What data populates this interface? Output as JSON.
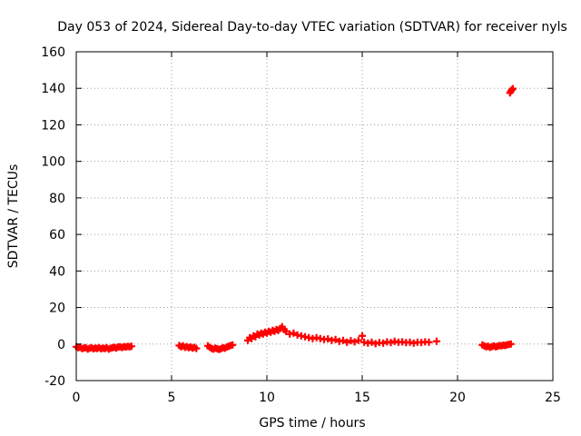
{
  "chart_data": {
    "type": "scatter",
    "title": "Day 053 of 2024, Sidereal Day-to-day VTEC variation (SDTVAR) for receiver nyls",
    "xlabel": "GPS time / hours",
    "ylabel": "SDTVAR / TECUs",
    "xlim": [
      0,
      25
    ],
    "ylim": [
      -20,
      160
    ],
    "xticks": [
      0,
      5,
      10,
      15,
      20,
      25
    ],
    "yticks": [
      -20,
      0,
      20,
      40,
      60,
      80,
      100,
      120,
      140,
      160
    ],
    "grid": true,
    "marker": "plus",
    "color": "#ff0000",
    "series": [
      {
        "points": [
          [
            0.0,
            -1.5
          ],
          [
            0.1,
            -2.0
          ],
          [
            0.2,
            -1.8
          ],
          [
            0.3,
            -2.5
          ],
          [
            0.4,
            -2.2
          ],
          [
            0.5,
            -2.0
          ],
          [
            0.6,
            -2.8
          ],
          [
            0.7,
            -2.3
          ],
          [
            0.8,
            -2.0
          ],
          [
            0.9,
            -2.6
          ],
          [
            1.0,
            -2.2
          ],
          [
            1.1,
            -2.4
          ],
          [
            1.2,
            -2.0
          ],
          [
            1.3,
            -2.6
          ],
          [
            1.4,
            -2.2
          ],
          [
            1.5,
            -2.5
          ],
          [
            1.6,
            -2.0
          ],
          [
            1.7,
            -2.8
          ],
          [
            1.8,
            -2.3
          ],
          [
            1.9,
            -2.0
          ],
          [
            2.0,
            -1.8
          ],
          [
            2.1,
            -2.2
          ],
          [
            2.2,
            -1.6
          ],
          [
            2.3,
            -1.5
          ],
          [
            2.4,
            -1.9
          ],
          [
            2.5,
            -1.4
          ],
          [
            2.6,
            -1.6
          ],
          [
            2.7,
            -1.3
          ],
          [
            2.8,
            -1.5
          ],
          [
            2.9,
            -1.2
          ],
          [
            5.4,
            -0.8
          ],
          [
            5.5,
            -1.5
          ],
          [
            5.6,
            -1.0
          ],
          [
            5.7,
            -1.8
          ],
          [
            5.8,
            -1.4
          ],
          [
            5.9,
            -2.0
          ],
          [
            6.0,
            -1.6
          ],
          [
            6.1,
            -2.2
          ],
          [
            6.2,
            -1.8
          ],
          [
            6.3,
            -2.4
          ],
          [
            6.9,
            -1.0
          ],
          [
            7.0,
            -1.8
          ],
          [
            7.1,
            -2.4
          ],
          [
            7.2,
            -2.8
          ],
          [
            7.3,
            -2.2
          ],
          [
            7.4,
            -2.6
          ],
          [
            7.5,
            -3.0
          ],
          [
            7.6,
            -2.5
          ],
          [
            7.7,
            -2.0
          ],
          [
            7.8,
            -2.3
          ],
          [
            7.9,
            -1.6
          ],
          [
            8.0,
            -1.2
          ],
          [
            8.1,
            -0.8
          ],
          [
            8.2,
            -0.5
          ],
          [
            9.0,
            2.0
          ],
          [
            9.1,
            3.5
          ],
          [
            9.2,
            3.0
          ],
          [
            9.3,
            4.5
          ],
          [
            9.4,
            4.0
          ],
          [
            9.5,
            5.5
          ],
          [
            9.6,
            5.0
          ],
          [
            9.7,
            6.0
          ],
          [
            9.8,
            5.5
          ],
          [
            9.9,
            6.5
          ],
          [
            10.0,
            6.0
          ],
          [
            10.1,
            7.0
          ],
          [
            10.2,
            6.5
          ],
          [
            10.3,
            7.5
          ],
          [
            10.4,
            7.0
          ],
          [
            10.5,
            8.0
          ],
          [
            10.6,
            7.5
          ],
          [
            10.7,
            8.5
          ],
          [
            10.8,
            9.5
          ],
          [
            10.9,
            8.0
          ],
          [
            11.0,
            7.0
          ],
          [
            11.2,
            5.5
          ],
          [
            11.4,
            6.0
          ],
          [
            11.6,
            5.0
          ],
          [
            11.8,
            4.5
          ],
          [
            12.0,
            4.0
          ],
          [
            12.2,
            3.5
          ],
          [
            12.4,
            3.0
          ],
          [
            12.6,
            3.5
          ],
          [
            12.8,
            3.0
          ],
          [
            13.0,
            2.5
          ],
          [
            13.2,
            2.8
          ],
          [
            13.4,
            2.0
          ],
          [
            13.6,
            2.5
          ],
          [
            13.8,
            1.5
          ],
          [
            14.0,
            2.0
          ],
          [
            14.2,
            1.0
          ],
          [
            14.4,
            1.8
          ],
          [
            14.6,
            1.2
          ],
          [
            14.8,
            2.0
          ],
          [
            15.0,
            4.5
          ],
          [
            15.1,
            1.0
          ],
          [
            15.3,
            0.5
          ],
          [
            15.5,
            1.0
          ],
          [
            15.7,
            0.2
          ],
          [
            15.9,
            0.8
          ],
          [
            16.1,
            0.5
          ],
          [
            16.3,
            1.2
          ],
          [
            16.5,
            0.8
          ],
          [
            16.7,
            1.5
          ],
          [
            16.9,
            1.0
          ],
          [
            17.1,
            1.2
          ],
          [
            17.3,
            0.8
          ],
          [
            17.5,
            1.0
          ],
          [
            17.7,
            0.5
          ],
          [
            17.9,
            1.0
          ],
          [
            18.1,
            0.8
          ],
          [
            18.3,
            1.2
          ],
          [
            18.5,
            1.0
          ],
          [
            18.9,
            1.5
          ],
          [
            21.3,
            -0.5
          ],
          [
            21.4,
            -1.0
          ],
          [
            21.5,
            -1.5
          ],
          [
            21.6,
            -1.2
          ],
          [
            21.7,
            -1.8
          ],
          [
            21.8,
            -1.4
          ],
          [
            21.9,
            -1.0
          ],
          [
            22.0,
            -1.5
          ],
          [
            22.1,
            -1.2
          ],
          [
            22.2,
            -0.8
          ],
          [
            22.3,
            -1.0
          ],
          [
            22.4,
            -0.6
          ],
          [
            22.5,
            -0.8
          ],
          [
            22.6,
            -0.4
          ],
          [
            22.7,
            -0.2
          ],
          [
            22.8,
            0.0
          ],
          [
            22.75,
            137.5
          ],
          [
            22.8,
            138.5
          ],
          [
            22.85,
            139.2
          ],
          [
            22.9,
            139.8
          ]
        ]
      }
    ]
  }
}
